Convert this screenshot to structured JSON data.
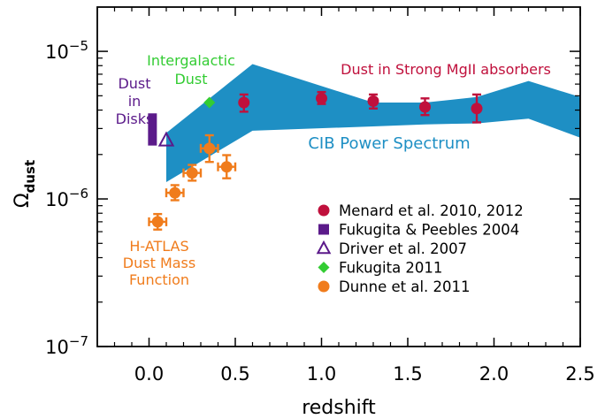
{
  "chart_data": {
    "type": "scatter",
    "xlabel": "redshift",
    "ylabel": {
      "main": "Ω",
      "sub": "dust"
    },
    "xlim": [
      -0.3,
      2.5
    ],
    "ylim_log10": [
      -7,
      -4.7
    ],
    "x_ticks": [
      {
        "v": 0.0,
        "label": "0.0"
      },
      {
        "v": 0.5,
        "label": "0.5"
      },
      {
        "v": 1.0,
        "label": "1.0"
      },
      {
        "v": 1.5,
        "label": "1.5"
      },
      {
        "v": 2.0,
        "label": "2.0"
      },
      {
        "v": 2.5,
        "label": "2.5"
      }
    ],
    "y_ticks": [
      {
        "exp": -7,
        "base": "10",
        "sup": "−7"
      },
      {
        "exp": -6,
        "base": "10",
        "sup": "−6"
      },
      {
        "exp": -5,
        "base": "10",
        "sup": "−5"
      }
    ],
    "y_scale": "log",
    "band": {
      "label": "CIB Power Spectrum",
      "color": "#1e8fc4",
      "upper": [
        [
          0.1,
          2.8e-06
        ],
        [
          0.6,
          8.2e-06
        ],
        [
          1.3,
          4.5e-06
        ],
        [
          1.6,
          4.5e-06
        ],
        [
          1.9,
          4.9e-06
        ],
        [
          2.2,
          6.3e-06
        ],
        [
          2.5,
          4.9e-06
        ]
      ],
      "lower": [
        [
          0.1,
          1.3e-06
        ],
        [
          0.6,
          2.9e-06
        ],
        [
          1.3,
          3.1e-06
        ],
        [
          1.6,
          3.2e-06
        ],
        [
          1.9,
          3.25e-06
        ],
        [
          2.2,
          3.5e-06
        ],
        [
          2.5,
          2.6e-06
        ]
      ]
    },
    "series": [
      {
        "name": "Menard et al. 2010, 2012",
        "marker": "circle",
        "color": "#c0103c",
        "points": [
          {
            "x": 0.55,
            "y": 4.5e-06,
            "ylo": 3.9e-06,
            "yhi": 5.1e-06
          },
          {
            "x": 1.0,
            "y": 4.8e-06,
            "ylo": 4.4e-06,
            "yhi": 5.3e-06
          },
          {
            "x": 1.3,
            "y": 4.6e-06,
            "ylo": 4.1e-06,
            "yhi": 5.1e-06
          },
          {
            "x": 1.6,
            "y": 4.2e-06,
            "ylo": 3.7e-06,
            "yhi": 4.8e-06
          },
          {
            "x": 1.9,
            "y": 4.1e-06,
            "ylo": 3.3e-06,
            "yhi": 5.1e-06
          }
        ]
      },
      {
        "name": "Fukugita & Peebles 2004",
        "marker": "rect",
        "color": "#5b1a8a",
        "points": [
          {
            "x": 0.03,
            "y": 2.9e-06,
            "ylo": 2.3e-06,
            "yhi": 3.8e-06
          }
        ]
      },
      {
        "name": "Driver et al. 2007",
        "marker": "open-triangle",
        "color": "#5b1a8a",
        "points": [
          {
            "x": 0.1,
            "y": 2.5e-06
          }
        ]
      },
      {
        "name": "Fukugita 2011",
        "marker": "diamond",
        "color": "#33cc33",
        "points": [
          {
            "x": 0.35,
            "y": 4.5e-06
          }
        ]
      },
      {
        "name": "Dunne et al. 2011",
        "marker": "circle",
        "color": "#f07c1c",
        "points": [
          {
            "x": 0.05,
            "y": 7e-07,
            "xlo": 0.0,
            "xhi": 0.1,
            "ylo": 6.2e-07,
            "yhi": 7.9e-07
          },
          {
            "x": 0.15,
            "y": 1.1e-06,
            "xlo": 0.1,
            "xhi": 0.2,
            "ylo": 9.8e-07,
            "yhi": 1.24e-06
          },
          {
            "x": 0.25,
            "y": 1.5e-06,
            "xlo": 0.2,
            "xhi": 0.3,
            "ylo": 1.33e-06,
            "yhi": 1.7e-06
          },
          {
            "x": 0.35,
            "y": 2.2e-06,
            "xlo": 0.3,
            "xhi": 0.4,
            "ylo": 1.78e-06,
            "yhi": 2.7e-06
          },
          {
            "x": 0.45,
            "y": 1.65e-06,
            "xlo": 0.4,
            "xhi": 0.5,
            "ylo": 1.38e-06,
            "yhi": 1.98e-06
          }
        ]
      }
    ],
    "annotations": [
      {
        "lines": [
          "Intergalactic",
          "Dust"
        ],
        "color": "#33cc33"
      },
      {
        "lines": [
          "Dust",
          "in",
          "Disks"
        ],
        "color": "#5b1a8a"
      },
      {
        "lines": [
          "Dust in Strong MgII absorbers"
        ],
        "color": "#c0103c"
      },
      {
        "lines": [
          "CIB Power Spectrum"
        ],
        "color": "#1e8fc4"
      },
      {
        "lines": [
          "H-ATLAS",
          "Dust Mass",
          "Function"
        ],
        "color": "#f07c1c"
      }
    ],
    "legend_position": "lower-right"
  }
}
